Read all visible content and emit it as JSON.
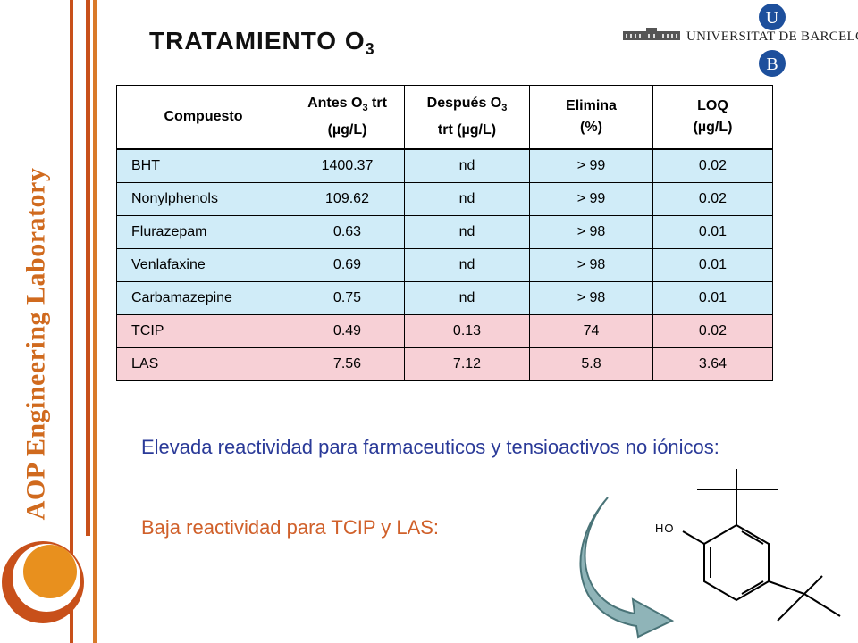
{
  "title": {
    "text": "TRATAMIENTO O",
    "sub": "3"
  },
  "sidebar": {
    "lab_label": "AOP Engineering Laboratory"
  },
  "logo": {
    "university": "UNIVERSITAT DE BARCELONA",
    "letter_top": "U",
    "letter_bottom": "B"
  },
  "table": {
    "headers": {
      "compuesto": "Compuesto",
      "antes_a": "Antes O",
      "antes_sub": "3",
      "antes_b": "trt",
      "antes_c": "(µg/L)",
      "despues_a": "Después O",
      "despues_sub": "3",
      "despues_b": "trt (µg/L)",
      "elimina_a": "Elimina",
      "elimina_b": "(%)",
      "loq_a": "LOQ",
      "loq_b": "(µg/L)"
    },
    "rows": [
      {
        "name": "BHT",
        "antes": "1400.37",
        "despues": "nd",
        "elimina": "> 99",
        "loq": "0.02"
      },
      {
        "name": "Nonylphenols",
        "antes": "109.62",
        "despues": "nd",
        "elimina": "> 99",
        "loq": "0.02"
      },
      {
        "name": "Flurazepam",
        "antes": "0.63",
        "despues": "nd",
        "elimina": "> 98",
        "loq": "0.01"
      },
      {
        "name": "Venlafaxine",
        "antes": "0.69",
        "despues": "nd",
        "elimina": "> 98",
        "loq": "0.01"
      },
      {
        "name": "Carbamazepine",
        "antes": "0.75",
        "despues": "nd",
        "elimina": "> 98",
        "loq": "0.01"
      },
      {
        "name": "TCIP",
        "antes": "0.49",
        "despues": "0.13",
        "elimina": "74",
        "loq": "0.02"
      },
      {
        "name": "LAS",
        "antes": "7.56",
        "despues": "7.12",
        "elimina": "5.8",
        "loq": "3.64"
      }
    ]
  },
  "notes": {
    "line1": "Elevada reactividad para farmaceuticos y tensioactivos no iónicos:",
    "line2": "Baja reactividad para  TCIP y  LAS:"
  },
  "molecule": {
    "ho_label": "HO"
  },
  "colors": {
    "accent": "#c8501a",
    "blue_row": "#d0ecf8",
    "pink_row": "#f7d0d6",
    "note_blue": "#2a3a98",
    "note_orange": "#d0602a"
  },
  "icons": {
    "circles": "concentric-circles-logo-icon",
    "building": "university-building-icon",
    "arrow": "curved-arrow-icon",
    "molecule": "bht-molecule-icon"
  }
}
